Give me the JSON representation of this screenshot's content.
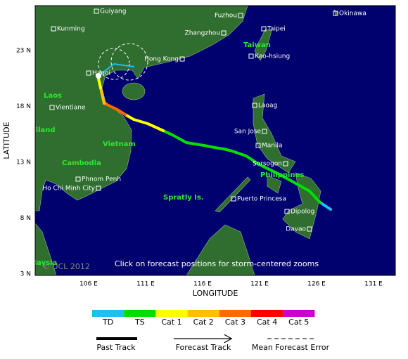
{
  "map": {
    "caption": "Click on forecast positions for storm-centered zooms",
    "copyright": "© UCL 2012",
    "x_label": "LONGITUDE",
    "y_label": "LATITUDE",
    "lon_ticks": [
      "106 E",
      "111 E",
      "116 E",
      "121 E",
      "126 E",
      "131 E"
    ],
    "lat_ticks": [
      "23 N",
      "18 N",
      "13 N",
      "8 N",
      "3 N"
    ],
    "cities": [
      "Guiyang",
      "Kunming",
      "Fuzhou",
      "Okinawa",
      "Zhangzhou",
      "Taipei",
      "Hong Kong",
      "Kao-hsiung",
      "Hanoi",
      "Vientiane",
      "Laoag",
      "San Jose",
      "Manila",
      "Sorsogon",
      "Phnom Penh",
      "Ho Chi Minh City",
      "Puerto Princesa",
      "Dipolog",
      "Davao"
    ],
    "regions": [
      "Laos",
      "Thailand",
      "Vietnam",
      "Cambodia",
      "Taiwan",
      "Philippines",
      "Spratly Is.",
      "Malaysia"
    ]
  },
  "legend": {
    "intensity": [
      {
        "label": "TD",
        "color": "#1ec0f0"
      },
      {
        "label": "TS",
        "color": "#00e000"
      },
      {
        "label": "Cat 1",
        "color": "#ffff00"
      },
      {
        "label": "Cat 2",
        "color": "#ffc000"
      },
      {
        "label": "Cat 3",
        "color": "#ff6a00"
      },
      {
        "label": "Cat 4",
        "color": "#ff0000"
      },
      {
        "label": "Cat 5",
        "color": "#cc00cc"
      }
    ],
    "track": [
      "Past Track",
      "Forecast Track",
      "Mean Forecast Error"
    ]
  }
}
